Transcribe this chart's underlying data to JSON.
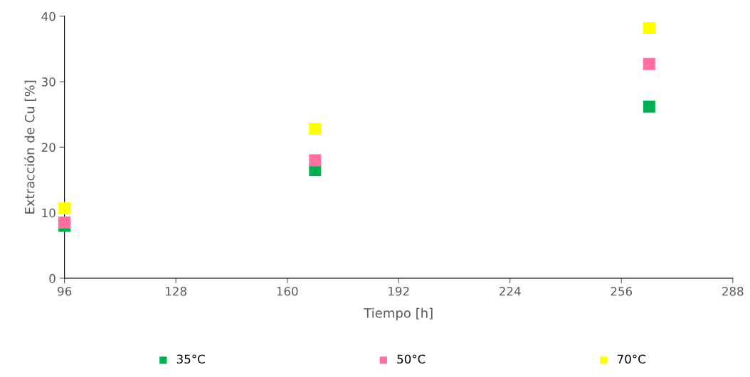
{
  "chart_data": {
    "type": "scatter",
    "xlabel": "Tiempo [h]",
    "ylabel": "Extracción de Cu [%]",
    "x": [
      96,
      168,
      264
    ],
    "series": [
      {
        "name": "35°C",
        "color": "#00b050",
        "values": [
          8.0,
          16.5,
          26.2
        ]
      },
      {
        "name": "50°C",
        "color": "#ff6f9f",
        "values": [
          8.5,
          18.0,
          32.7
        ]
      },
      {
        "name": "70°C",
        "color": "#ffff00",
        "values": [
          10.7,
          22.8,
          38.2
        ]
      }
    ],
    "xlim": [
      96,
      288
    ],
    "xticks": [
      96,
      128,
      160,
      192,
      224,
      256,
      288
    ],
    "ylim": [
      0,
      40
    ],
    "yticks": [
      0,
      10,
      20,
      30,
      40
    ],
    "grid": false,
    "legend": "bottom",
    "marker": "square"
  }
}
